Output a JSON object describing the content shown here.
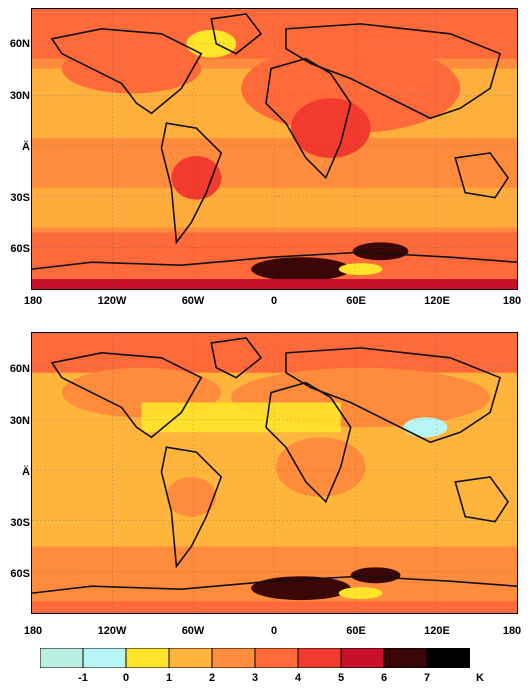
{
  "maps": [
    {
      "lat_labels": [
        "60N",
        "30N",
        "Ä",
        "30S",
        "60S"
      ],
      "lon_labels": [
        "180",
        "120W",
        "60W",
        "0",
        "60E",
        "120E",
        "180"
      ]
    },
    {
      "lat_labels": [
        "60N",
        "30N",
        "Ä",
        "30S",
        "60S"
      ],
      "lon_labels": [
        "180",
        "120W",
        "60W",
        "0",
        "60E",
        "120E",
        "180"
      ]
    }
  ],
  "colorbar": {
    "tick_labels": [
      "-1",
      "0",
      "1",
      "2",
      "3",
      "4",
      "5",
      "6",
      "7"
    ],
    "unit": "K",
    "colors": [
      "#b8efe0",
      "#b8f6f6",
      "#ffe42a",
      "#ffb43c",
      "#ff8c3c",
      "#ff6a3a",
      "#f23a2e",
      "#c9102a",
      "#3a0606",
      "#000000"
    ]
  },
  "palette": {
    "warm_base": "#ff8c3c",
    "land_outline": "#111111"
  }
}
